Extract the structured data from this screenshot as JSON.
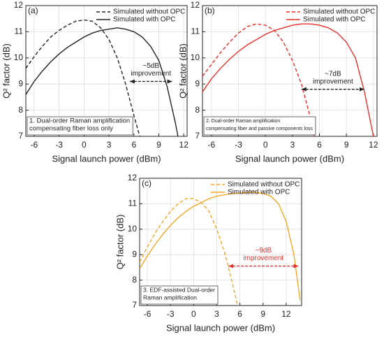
{
  "chart_data": [
    {
      "type": "line",
      "label": "(a)",
      "xlabel": "Signal launch power (dBm)",
      "ylabel": "Q² factor (dB)",
      "xlim": [
        -7,
        12.4
      ],
      "ylim": [
        7,
        12
      ],
      "xticks": [
        -6,
        -3,
        0,
        3,
        6,
        9,
        12
      ],
      "yticks": [
        7,
        8,
        9,
        10,
        11,
        12
      ],
      "grid": true,
      "legend": "top-right",
      "series": [
        {
          "name": "Simulated without OPC",
          "color": "#222222",
          "dashed": true,
          "x": [
            -7,
            -6,
            -5,
            -4,
            -3,
            -2,
            -1,
            0,
            1,
            2,
            3,
            4,
            5,
            6,
            6.7
          ],
          "values": [
            9.6,
            10.05,
            10.45,
            10.8,
            11.05,
            11.25,
            11.4,
            11.45,
            11.4,
            11.15,
            10.7,
            10.0,
            9.0,
            7.8,
            7.0
          ]
        },
        {
          "name": "Simulated with OPC",
          "color": "#222222",
          "dashed": false,
          "x": [
            -7,
            -6,
            -5,
            -4,
            -3,
            -2,
            -1,
            0,
            1,
            2,
            3,
            4,
            5,
            6,
            7,
            8,
            9,
            10,
            11,
            11.3
          ],
          "values": [
            8.6,
            9.1,
            9.5,
            9.85,
            10.15,
            10.4,
            10.6,
            10.8,
            10.95,
            11.05,
            11.1,
            11.15,
            11.1,
            11.0,
            10.8,
            10.45,
            9.9,
            8.9,
            7.5,
            7.0
          ]
        }
      ],
      "annotation": {
        "lines": [
          "~5dB",
          "improvement"
        ],
        "color": "#222222",
        "arrow": {
          "x": [
            5.5,
            10.6
          ],
          "y": 9.1
        }
      },
      "note": [
        "1. Dual-order Raman amplification",
        "compensating fiber loss only"
      ]
    },
    {
      "type": "line",
      "label": "(b)",
      "xlabel": "Signal launch power (dBm)",
      "ylabel": "Q² factor (dB)",
      "xlim": [
        -7,
        12.4
      ],
      "ylim": [
        7,
        12
      ],
      "xticks": [
        -6,
        -3,
        0,
        3,
        6,
        9,
        12
      ],
      "yticks": [
        7,
        8,
        9,
        10,
        11,
        12
      ],
      "grid": true,
      "legend": "top-right",
      "series": [
        {
          "name": "Simulated without OPC",
          "color": "#e8302a",
          "dashed": true,
          "x": [
            -7,
            -6,
            -5,
            -4,
            -3,
            -2,
            -1,
            0,
            1,
            2,
            3,
            4,
            5,
            5.4
          ],
          "values": [
            9.3,
            9.75,
            10.2,
            10.6,
            10.95,
            11.2,
            11.3,
            11.25,
            11.05,
            10.6,
            9.9,
            9.0,
            7.7,
            7.0
          ]
        },
        {
          "name": "Simulated with OPC",
          "color": "#e8302a",
          "dashed": false,
          "x": [
            -7,
            -6,
            -5,
            -4,
            -3,
            -2,
            -1,
            0,
            1,
            2,
            3,
            4,
            5,
            6,
            7,
            8,
            9,
            10,
            11,
            12
          ],
          "values": [
            8.7,
            9.2,
            9.6,
            9.95,
            10.25,
            10.5,
            10.7,
            10.9,
            11.05,
            11.15,
            11.25,
            11.3,
            11.3,
            11.25,
            11.15,
            10.95,
            10.6,
            10.0,
            8.7,
            7.0
          ]
        }
      ],
      "annotation": {
        "lines": [
          "~7dB",
          "improvement"
        ],
        "color": "#222222",
        "arrow": {
          "x": [
            4,
            11
          ],
          "y": 8.8
        }
      },
      "note": [
        "2. Dual-order Raman amplification",
        "compensating fiber and passive components loss"
      ]
    },
    {
      "type": "line",
      "label": "(c)",
      "xlabel": "Signal launch power (dBm)",
      "ylabel": "Q² factor (dB)",
      "xlim": [
        -7,
        14
      ],
      "ylim": [
        7,
        12
      ],
      "xticks": [
        -6,
        -3,
        0,
        3,
        6,
        9,
        12
      ],
      "yticks": [
        7,
        8,
        9,
        10,
        11,
        12
      ],
      "grid": true,
      "legend": "top-right",
      "series": [
        {
          "name": "Simulated without OPC",
          "color": "#f5a623",
          "dashed": true,
          "x": [
            -7,
            -6,
            -5,
            -4,
            -3,
            -2,
            -1,
            0,
            1,
            2,
            3,
            4,
            5,
            5.7
          ],
          "values": [
            8.7,
            9.3,
            9.85,
            10.3,
            10.7,
            11.0,
            11.2,
            11.2,
            11.05,
            10.7,
            10.0,
            9.1,
            7.9,
            7.0
          ]
        },
        {
          "name": "Simulated with OPC",
          "color": "#f5a623",
          "dashed": false,
          "x": [
            -7,
            -6,
            -5,
            -4,
            -3,
            -2,
            -1,
            0,
            1,
            2,
            3,
            4,
            5,
            6,
            7,
            8,
            9,
            10,
            11,
            12,
            13,
            13.8
          ],
          "values": [
            8.45,
            8.95,
            9.4,
            9.8,
            10.15,
            10.45,
            10.7,
            10.9,
            11.05,
            11.2,
            11.3,
            11.35,
            11.4,
            11.42,
            11.45,
            11.45,
            11.4,
            11.3,
            11.0,
            10.3,
            9.0,
            7.2
          ]
        }
      ],
      "annotation": {
        "lines": [
          "~9dB",
          "improvement"
        ],
        "color": "#e8302a",
        "arrow": {
          "x": [
            4.5,
            13.6
          ],
          "y": 8.55
        }
      },
      "note": [
        "3. EDF-assisted Dual-order",
        "Raman amplification"
      ]
    }
  ]
}
